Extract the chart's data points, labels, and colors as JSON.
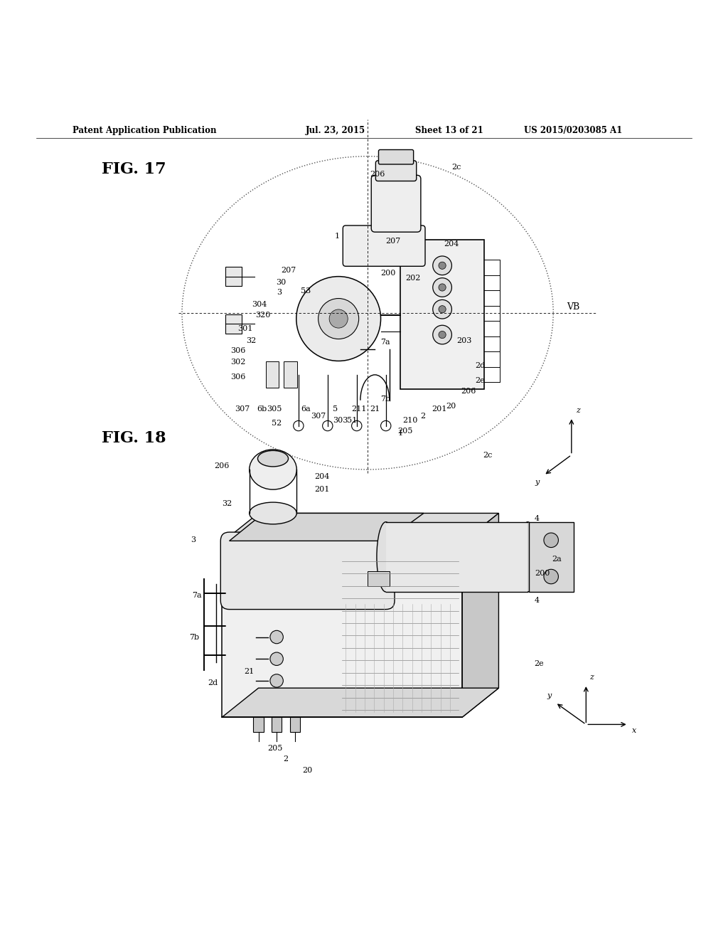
{
  "bg_color": "#ffffff",
  "page_width": 10.24,
  "page_height": 13.2,
  "header_text": "Patent Application Publication",
  "header_date": "Jul. 23, 2015",
  "header_sheet": "Sheet 13 of 21",
  "header_patent": "US 2015/0203085 A1",
  "fig17_label": "FIG. 17",
  "fig18_label": "FIG. 18",
  "line_color": "#000000",
  "label_fontsize": 9,
  "header_fontsize": 8.5,
  "fig_label_fontsize": 16
}
